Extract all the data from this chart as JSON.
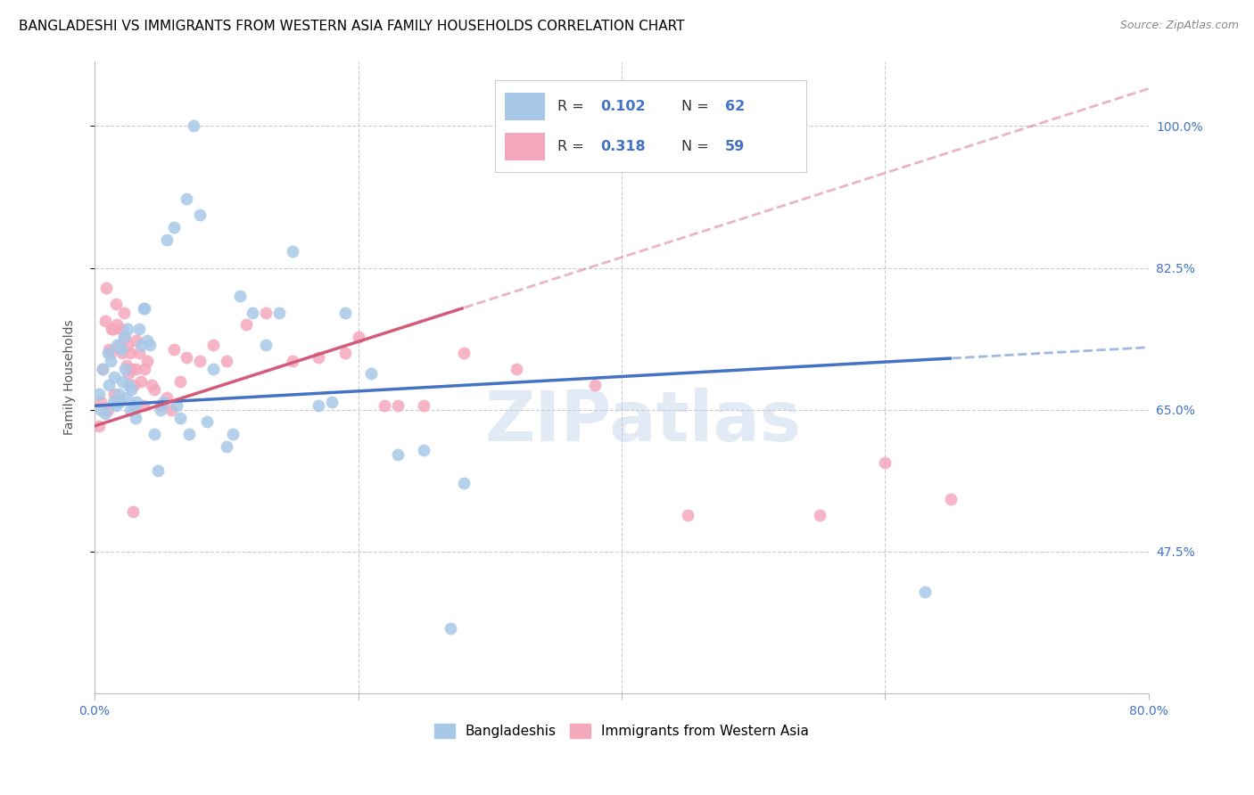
{
  "title": "BANGLADESHI VS IMMIGRANTS FROM WESTERN ASIA FAMILY HOUSEHOLDS CORRELATION CHART",
  "source": "Source: ZipAtlas.com",
  "ylabel": "Family Households",
  "y_ticks": [
    47.5,
    65.0,
    82.5,
    100.0
  ],
  "y_tick_labels": [
    "47.5%",
    "65.0%",
    "82.5%",
    "100.0%"
  ],
  "x_min": 0.0,
  "x_max": 80.0,
  "y_min": 30.0,
  "y_max": 108.0,
  "blue_color": "#a8c8e8",
  "pink_color": "#f4a8bc",
  "blue_line_color": "#4472c4",
  "pink_line_color": "#d45a7a",
  "r_blue": 0.102,
  "n_blue": 62,
  "r_pink": 0.318,
  "n_pink": 59,
  "legend_label_blue": "Bangladeshis",
  "legend_label_pink": "Immigrants from Western Asia",
  "watermark": "ZIPatlas",
  "blue_x_intercept": 63.0,
  "pink_x_dashed_start": 28.0,
  "title_fontsize": 11,
  "axis_label_fontsize": 10,
  "tick_fontsize": 10,
  "legend_fontsize": 11,
  "blue_scatter_x": [
    0.3,
    0.5,
    0.6,
    0.8,
    1.0,
    1.1,
    1.2,
    1.4,
    1.5,
    1.6,
    1.7,
    1.8,
    1.9,
    2.0,
    2.1,
    2.2,
    2.3,
    2.4,
    2.5,
    2.6,
    2.7,
    2.8,
    3.0,
    3.1,
    3.2,
    3.4,
    3.5,
    3.7,
    3.8,
    4.0,
    4.2,
    4.5,
    4.8,
    5.0,
    5.2,
    5.5,
    6.0,
    6.2,
    6.5,
    7.0,
    7.2,
    7.5,
    8.0,
    8.5,
    9.0,
    10.0,
    10.5,
    11.0,
    12.0,
    13.0,
    14.0,
    15.0,
    17.0,
    18.0,
    19.0,
    21.0,
    23.0,
    25.0,
    27.0,
    28.0,
    35.0,
    63.0
  ],
  "blue_scatter_y": [
    67.0,
    65.0,
    70.0,
    64.5,
    72.0,
    68.0,
    71.0,
    66.0,
    69.0,
    65.5,
    73.0,
    67.0,
    66.0,
    72.5,
    68.5,
    74.0,
    70.0,
    66.5,
    75.0,
    68.0,
    65.0,
    67.5,
    65.5,
    64.0,
    66.0,
    75.0,
    73.0,
    77.5,
    77.5,
    73.5,
    73.0,
    62.0,
    57.5,
    65.0,
    66.0,
    86.0,
    87.5,
    65.5,
    64.0,
    91.0,
    62.0,
    100.0,
    89.0,
    63.5,
    70.0,
    60.5,
    62.0,
    79.0,
    77.0,
    73.0,
    77.0,
    84.5,
    65.5,
    66.0,
    77.0,
    69.5,
    59.5,
    60.0,
    38.0,
    56.0,
    100.0,
    42.5
  ],
  "pink_scatter_x": [
    0.3,
    0.5,
    0.6,
    0.8,
    1.0,
    1.1,
    1.2,
    1.3,
    1.5,
    1.6,
    1.7,
    1.9,
    2.0,
    2.1,
    2.2,
    2.3,
    2.4,
    2.5,
    2.6,
    2.7,
    2.8,
    3.0,
    3.1,
    3.2,
    3.4,
    3.5,
    3.7,
    3.8,
    4.0,
    4.3,
    4.5,
    5.0,
    5.5,
    6.0,
    6.5,
    7.0,
    8.0,
    9.0,
    10.0,
    11.5,
    13.0,
    15.0,
    17.0,
    19.0,
    20.0,
    22.0,
    23.0,
    25.0,
    28.0,
    32.0,
    38.0,
    45.0,
    55.0,
    60.0,
    65.0,
    0.9,
    1.4,
    2.9,
    5.8
  ],
  "pink_scatter_y": [
    63.0,
    66.0,
    70.0,
    76.0,
    65.0,
    72.5,
    72.0,
    75.0,
    67.0,
    78.0,
    75.5,
    73.0,
    75.0,
    72.0,
    77.0,
    74.0,
    70.5,
    73.0,
    69.5,
    72.0,
    70.0,
    68.0,
    70.0,
    73.5,
    72.0,
    68.5,
    65.5,
    70.0,
    71.0,
    68.0,
    67.5,
    65.5,
    66.5,
    72.5,
    68.5,
    71.5,
    71.0,
    73.0,
    71.0,
    75.5,
    77.0,
    71.0,
    71.5,
    72.0,
    74.0,
    65.5,
    65.5,
    65.5,
    72.0,
    70.0,
    68.0,
    52.0,
    52.0,
    58.5,
    54.0,
    80.0,
    75.0,
    52.5,
    65.0
  ]
}
